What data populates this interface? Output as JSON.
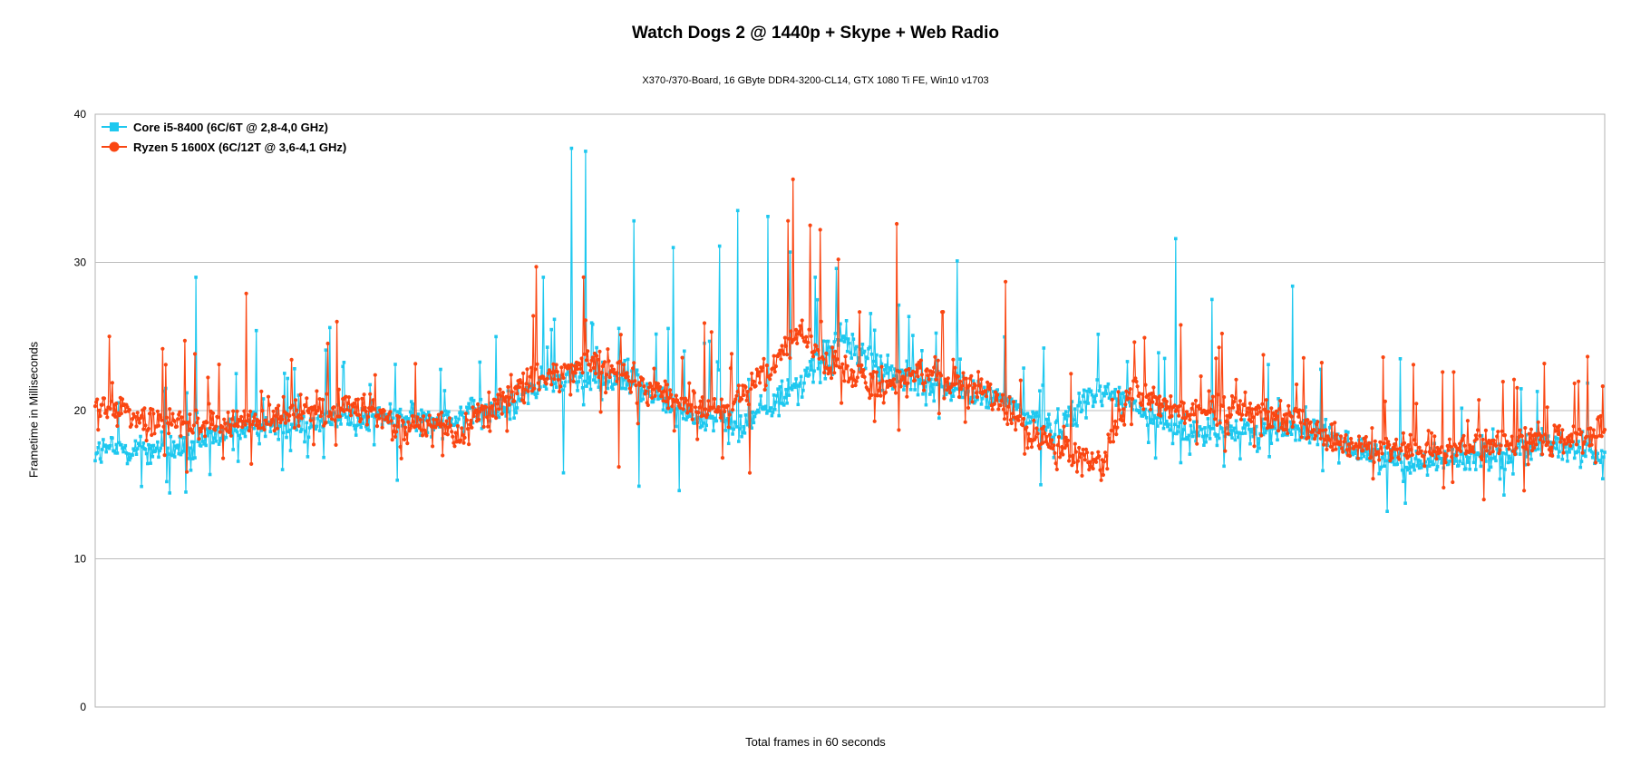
{
  "chart_data": {
    "type": "line",
    "title": "Watch Dogs 2 @ 1440p + Skype + Web Radio",
    "subtitle": "X370-/370-Board, 16 GByte DDR4-3200-CL14, GTX 1080 Ti FE, Win10 v1703",
    "xlabel": "Total frames in 60 seconds",
    "ylabel": "Frametime in Milliseconds",
    "ylim": [
      0,
      40
    ],
    "yticks": [
      0,
      10,
      20,
      30,
      40
    ],
    "ytick_labels": [
      "0",
      "10",
      "20",
      "30",
      "40"
    ],
    "grid": true,
    "legend_position": "top-left",
    "frame_count": 1500,
    "series": [
      {
        "name": "Core i5-8400 (6C/6T @ 2,8-4,0 GHz)",
        "color": "#1ec8ef",
        "marker": "square",
        "baseline": [
          [
            0,
            17.3
          ],
          [
            60,
            17.5
          ],
          [
            100,
            17.4
          ],
          [
            130,
            18.6
          ],
          [
            200,
            19.2
          ],
          [
            280,
            19.6
          ],
          [
            330,
            19.4
          ],
          [
            400,
            19.9
          ],
          [
            440,
            21.7
          ],
          [
            480,
            22.3
          ],
          [
            530,
            22.1
          ],
          [
            560,
            20.8
          ],
          [
            600,
            19.5
          ],
          [
            640,
            19.0
          ],
          [
            700,
            21.8
          ],
          [
            740,
            25.0
          ],
          [
            790,
            22.5
          ],
          [
            840,
            21.5
          ],
          [
            900,
            20.8
          ],
          [
            950,
            18.7
          ],
          [
            1000,
            21.5
          ],
          [
            1060,
            19.1
          ],
          [
            1100,
            18.5
          ],
          [
            1200,
            18.8
          ],
          [
            1250,
            17.5
          ],
          [
            1300,
            16.6
          ],
          [
            1360,
            16.8
          ],
          [
            1440,
            17.7
          ],
          [
            1500,
            17.0
          ]
        ],
        "spikes": [
          [
            100,
            29.0
          ],
          [
            160,
            25.4
          ],
          [
            233,
            25.6
          ],
          [
            445,
            29.0
          ],
          [
            465,
            34.5
          ],
          [
            473,
            37.7
          ],
          [
            487,
            37.5
          ],
          [
            535,
            32.8
          ],
          [
            540,
            31.2
          ],
          [
            574,
            31.0
          ],
          [
            620,
            31.1
          ],
          [
            638,
            33.5
          ],
          [
            668,
            33.1
          ],
          [
            690,
            30.7
          ],
          [
            715,
            29.0
          ],
          [
            857,
            30.1
          ],
          [
            1074,
            31.6
          ],
          [
            1110,
            27.5
          ],
          [
            1190,
            28.4
          ],
          [
            1297,
            23.5
          ],
          [
            1400,
            22.8
          ]
        ],
        "dips": [
          [
            90,
            14.5
          ],
          [
            300,
            15.3
          ],
          [
            465,
            15.8
          ],
          [
            540,
            14.9
          ],
          [
            580,
            14.6
          ],
          [
            940,
            15.0
          ],
          [
            1284,
            13.2
          ],
          [
            1400,
            14.3
          ],
          [
            1498,
            15.4
          ]
        ]
      },
      {
        "name": "Ryzen 5 1600X (6C/12T @ 3,6-4,1 GHz)",
        "color": "#fa4612",
        "marker": "circle",
        "baseline": [
          [
            0,
            20.4
          ],
          [
            50,
            19.4
          ],
          [
            100,
            19.2
          ],
          [
            150,
            19.2
          ],
          [
            200,
            19.8
          ],
          [
            250,
            20.2
          ],
          [
            280,
            19.7
          ],
          [
            300,
            18.8
          ],
          [
            340,
            19.2
          ],
          [
            360,
            18.5
          ],
          [
            400,
            20.7
          ],
          [
            450,
            22.5
          ],
          [
            500,
            23.5
          ],
          [
            530,
            22.0
          ],
          [
            580,
            20.5
          ],
          [
            620,
            20.0
          ],
          [
            670,
            22.5
          ],
          [
            700,
            25.5
          ],
          [
            730,
            23.0
          ],
          [
            780,
            21.5
          ],
          [
            830,
            22.5
          ],
          [
            880,
            21.5
          ],
          [
            930,
            18.5
          ],
          [
            970,
            17.0
          ],
          [
            1000,
            16.5
          ],
          [
            1030,
            21.5
          ],
          [
            1060,
            20.5
          ],
          [
            1100,
            19.8
          ],
          [
            1150,
            20.0
          ],
          [
            1200,
            19.0
          ],
          [
            1250,
            17.5
          ],
          [
            1300,
            17.3
          ],
          [
            1400,
            17.8
          ],
          [
            1500,
            18.5
          ]
        ],
        "spikes": [
          [
            150,
            27.9
          ],
          [
            240,
            26.0
          ],
          [
            438,
            29.7
          ],
          [
            485,
            29.0
          ],
          [
            612,
            25.3
          ],
          [
            688,
            32.8
          ],
          [
            693,
            35.6
          ],
          [
            710,
            32.5
          ],
          [
            720,
            32.2
          ],
          [
            738,
            30.2
          ],
          [
            797,
            32.6
          ],
          [
            905,
            28.7
          ],
          [
            1120,
            25.2
          ],
          [
            1280,
            23.6
          ],
          [
            1350,
            22.6
          ],
          [
            1410,
            22.1
          ]
        ],
        "dips": [
          [
            155,
            16.4
          ],
          [
            520,
            16.2
          ],
          [
            650,
            15.8
          ],
          [
            981,
            15.6
          ],
          [
            1000,
            15.3
          ],
          [
            1340,
            14.8
          ],
          [
            1380,
            14.0
          ],
          [
            1420,
            14.6
          ]
        ]
      }
    ]
  }
}
